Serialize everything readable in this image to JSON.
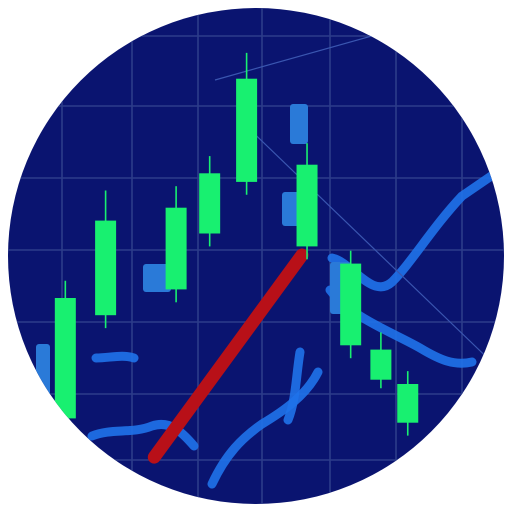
{
  "chart_data": {
    "type": "candlestick",
    "title": "",
    "xlabel": "",
    "ylabel": "",
    "grid": true,
    "ylim": [
      0,
      100
    ],
    "xlim": [
      0,
      14
    ],
    "candles": [
      {
        "x": 1.35,
        "open": 12,
        "close": 40,
        "high": 44,
        "low": 10,
        "dir": "up"
      },
      {
        "x": 2.55,
        "open": 36,
        "close": 58,
        "high": 65,
        "low": 33,
        "dir": "up"
      },
      {
        "x": 4.65,
        "open": 42,
        "close": 61,
        "high": 66,
        "low": 39,
        "dir": "up"
      },
      {
        "x": 5.65,
        "open": 55,
        "close": 69,
        "high": 73,
        "low": 52,
        "dir": "up"
      },
      {
        "x": 6.75,
        "open": 67,
        "close": 91,
        "high": 97,
        "low": 64,
        "dir": "up"
      },
      {
        "x": 8.55,
        "open": 71,
        "close": 52,
        "high": 76,
        "low": 49,
        "dir": "down"
      },
      {
        "x": 9.85,
        "open": 48,
        "close": 29,
        "high": 51,
        "low": 26,
        "dir": "down"
      },
      {
        "x": 10.75,
        "open": 28,
        "close": 21,
        "high": 32,
        "low": 19,
        "dir": "down"
      },
      {
        "x": 11.55,
        "open": 20,
        "close": 11,
        "high": 23,
        "low": 8,
        "dir": "down"
      }
    ],
    "trend_line": [
      [
        4.0,
        3
      ],
      [
        8.4,
        50
      ]
    ],
    "colors": {
      "background": "#0a1470",
      "grid": "#2c3c8a",
      "bull": "#18f070",
      "bear": "#18f070",
      "trend": "#b81018",
      "river": "#1f72ea",
      "accent": "#2a7ad8"
    }
  }
}
